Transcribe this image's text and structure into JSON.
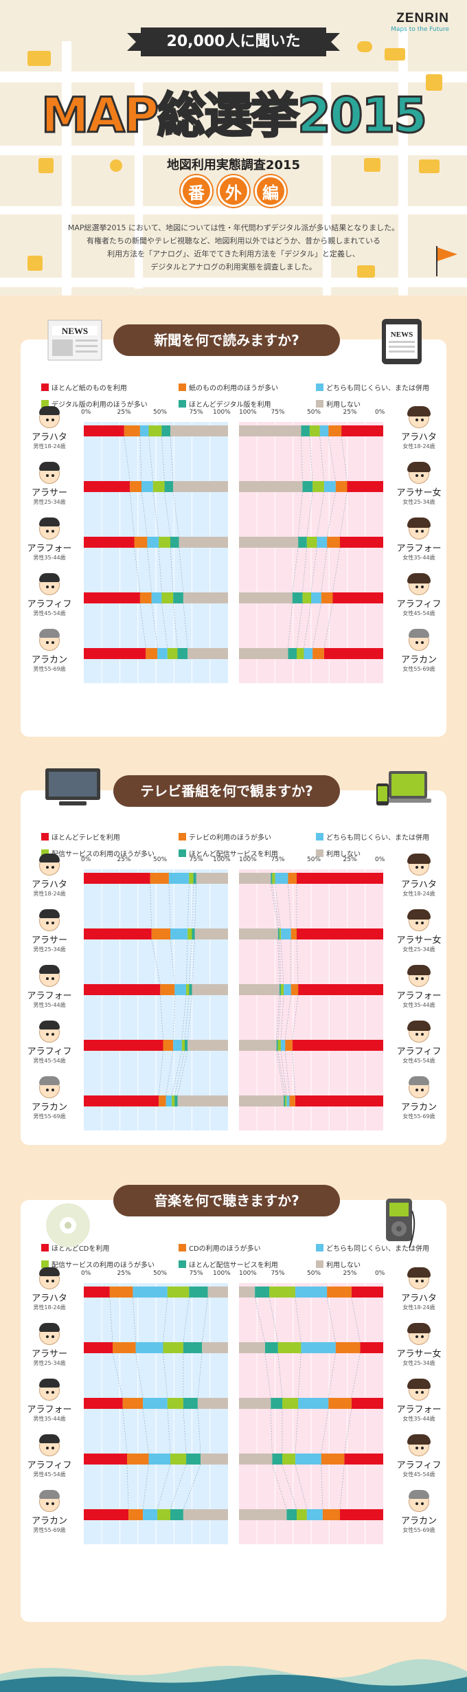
{
  "header": {
    "logo": "ZENRIN",
    "tagline": "Maps to the Future",
    "kicker": "20,000人に聞いた",
    "title_a": "MAP",
    "title_b": "総選挙",
    "title_c": "2015",
    "subtitle": "地図利用実態調査2015",
    "badge": [
      "番",
      "外",
      "編"
    ],
    "intro": [
      "MAP総選挙2015 において、地図については性・年代問わずデジタル派が多い結果となりました。",
      "有権者たちの新聞やテレビ視聴など、地図利用以外ではどうか、昔から親しまれている",
      "利用方法を「アナログ」、近年でてきた利用方法を「デジタル」と定義し、",
      "デジタルとアナログの利用実態を調査しました。"
    ]
  },
  "colors": {
    "red": "#e60f20",
    "orange": "#ef7d1a",
    "sky": "#5ec4ea",
    "lime": "#9ccb2a",
    "teal": "#2bab92",
    "gray": "#cbbfb4",
    "male_bg": "#dcefff",
    "female_bg": "#fde3ec"
  },
  "groups": {
    "male": [
      {
        "name": "アラハタ",
        "age": "男性18-24歳"
      },
      {
        "name": "アラサー",
        "age": "男性25-34歳"
      },
      {
        "name": "アラフォー",
        "age": "男性35-44歳"
      },
      {
        "name": "アラフィフ",
        "age": "男性45-54歳"
      },
      {
        "name": "アラカン",
        "age": "男性55-69歳"
      }
    ],
    "female": [
      {
        "name": "アラハタ",
        "age": "女性18-24歳"
      },
      {
        "name": "アラサー女",
        "age": "女性25-34歳"
      },
      {
        "name": "アラフォー",
        "age": "女性35-44歳"
      },
      {
        "name": "アラフィフ",
        "age": "女性45-54歳"
      },
      {
        "name": "アラカン",
        "age": "女性55-69歳"
      }
    ]
  },
  "chart_data": [
    {
      "type": "bar",
      "title": "新聞を何で読みますか?",
      "axis_ticks_male": [
        "0%",
        "25%",
        "50%",
        "75%",
        "100%"
      ],
      "axis_ticks_female": [
        "100%",
        "75%",
        "50%",
        "25%",
        "0%"
      ],
      "legend": [
        "ほとんど紙のものを利用",
        "紙のものの利用のほうが多い",
        "どちらも同じくらい、または併用",
        "デジタル版の利用のほうが多い",
        "ほとんどデジタル版を利用",
        "利用しない"
      ],
      "male": [
        [
          28,
          11,
          6,
          9,
          6,
          40
        ],
        [
          32,
          8,
          8,
          8,
          6,
          38
        ],
        [
          35,
          9,
          8,
          8,
          6,
          34
        ],
        [
          39,
          8,
          7,
          8,
          7,
          31
        ],
        [
          43,
          8,
          7,
          7,
          7,
          28
        ]
      ],
      "female": [
        [
          29,
          9,
          6,
          7,
          6,
          43
        ],
        [
          25,
          8,
          8,
          8,
          7,
          44
        ],
        [
          30,
          9,
          7,
          7,
          6,
          41
        ],
        [
          35,
          8,
          7,
          6,
          7,
          37
        ],
        [
          41,
          8,
          6,
          5,
          6,
          34
        ]
      ]
    },
    {
      "type": "bar",
      "title": "テレビ番組を何で観ますか?",
      "axis_ticks_male": [
        "0%",
        "25%",
        "50%",
        "75%",
        "100%"
      ],
      "axis_ticks_female": [
        "100%",
        "75%",
        "50%",
        "25%",
        "0%"
      ],
      "legend": [
        "ほとんどテレビを利用",
        "テレビの利用のほうが多い",
        "どちらも同じくらい、または併用",
        "配信サービスの利用のほうが多い",
        "ほとんど配信サービスを利用",
        "利用しない"
      ],
      "male": [
        [
          46,
          13,
          14,
          3,
          2,
          22
        ],
        [
          47,
          13,
          12,
          3,
          2,
          23
        ],
        [
          53,
          10,
          8,
          2,
          2,
          25
        ],
        [
          55,
          7,
          6,
          2,
          2,
          28
        ],
        [
          52,
          5,
          4,
          2,
          2,
          35
        ]
      ],
      "female": [
        [
          60,
          6,
          9,
          2,
          1,
          22
        ],
        [
          60,
          4,
          7,
          1,
          1,
          27
        ],
        [
          59,
          5,
          5,
          2,
          1,
          28
        ],
        [
          63,
          5,
          3,
          2,
          1,
          26
        ],
        [
          61,
          4,
          2,
          1,
          1,
          31
        ]
      ]
    },
    {
      "type": "bar",
      "title": "音楽を何で聴きますか?",
      "axis_ticks_male": [
        "0%",
        "25%",
        "50%",
        "75%",
        "100%"
      ],
      "axis_ticks_female": [
        "100%",
        "75%",
        "50%",
        "25%",
        "0%"
      ],
      "legend": [
        "ほとんどCDを利用",
        "CDの利用のほうが多い",
        "どちらも同じくらい、または併用",
        "配信サービスの利用のほうが多い",
        "ほとんど配信サービスを利用",
        "利用しない"
      ],
      "male": [
        [
          18,
          16,
          24,
          15,
          13,
          14
        ],
        [
          20,
          16,
          19,
          14,
          13,
          18
        ],
        [
          27,
          14,
          17,
          11,
          10,
          21
        ],
        [
          30,
          15,
          15,
          11,
          10,
          19
        ],
        [
          31,
          10,
          10,
          9,
          9,
          31
        ]
      ],
      "female": [
        [
          22,
          17,
          22,
          18,
          10,
          11
        ],
        [
          16,
          17,
          24,
          16,
          9,
          18
        ],
        [
          22,
          16,
          21,
          11,
          8,
          22
        ],
        [
          27,
          16,
          18,
          9,
          7,
          23
        ],
        [
          30,
          12,
          11,
          7,
          7,
          33
        ]
      ]
    }
  ]
}
